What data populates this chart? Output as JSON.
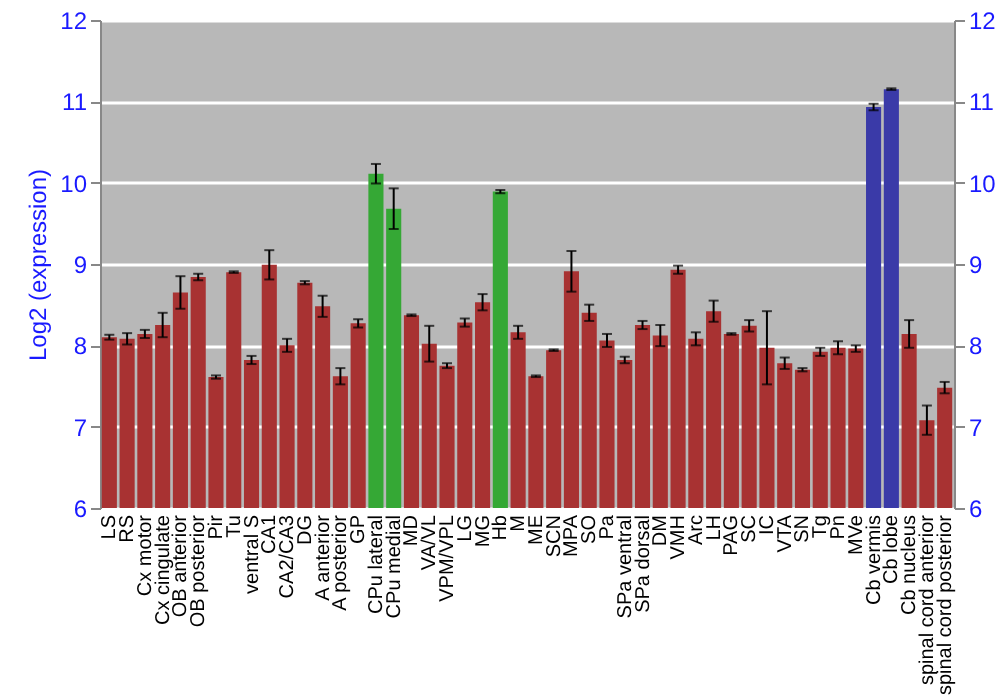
{
  "chart_data": {
    "type": "bar",
    "ylabel": "Log2 (expression)",
    "categories": [
      "LS",
      "RS",
      "Cx motor",
      "Cx cingulate",
      "OB anterior",
      "OB posterior",
      "Pir",
      "Tu",
      "ventral S",
      "CA1",
      "CA2/CA3",
      "DG",
      "A anterior",
      "A posterior",
      "GP",
      "CPu lateral",
      "CPu medial",
      "MD",
      "VA/VL",
      "VPM/VPL",
      "LG",
      "MG",
      "Hb",
      "M",
      "ME",
      "SCN",
      "MPA",
      "SO",
      "Pa",
      "SPa ventral",
      "SPa dorsal",
      "DM",
      "VMH",
      "Arc",
      "LH",
      "PAG",
      "SC",
      "IC",
      "VTA",
      "SN",
      "Tg",
      "Pn",
      "MVe",
      "Cb vermis",
      "Cb lobe",
      "Cb nucleus",
      "spinal cord anterior",
      "spinal cord posterior"
    ],
    "values": [
      8.1,
      8.08,
      8.14,
      8.25,
      8.65,
      8.84,
      7.61,
      8.9,
      7.82,
      8.99,
      8.0,
      8.77,
      8.48,
      7.62,
      8.27,
      10.11,
      9.68,
      8.37,
      8.02,
      7.75,
      8.28,
      8.53,
      9.89,
      8.16,
      7.62,
      7.94,
      8.91,
      8.4,
      8.06,
      7.82,
      8.25,
      8.12,
      8.93,
      8.08,
      8.42,
      8.14,
      8.24,
      7.97,
      7.78,
      7.7,
      7.92,
      7.97,
      7.96,
      10.93,
      11.15,
      8.14,
      7.08,
      7.48
    ],
    "errors": [
      0.03,
      0.07,
      0.05,
      0.15,
      0.2,
      0.04,
      0.02,
      0.01,
      0.05,
      0.18,
      0.08,
      0.02,
      0.13,
      0.1,
      0.05,
      0.12,
      0.25,
      0.01,
      0.22,
      0.03,
      0.05,
      0.1,
      0.02,
      0.08,
      0.01,
      0.01,
      0.25,
      0.1,
      0.08,
      0.04,
      0.05,
      0.13,
      0.05,
      0.08,
      0.13,
      0.01,
      0.07,
      0.45,
      0.07,
      0.02,
      0.05,
      0.08,
      0.04,
      0.04,
      0.01,
      0.17,
      0.18,
      0.07
    ],
    "colors": [
      "#a83232",
      "#a83232",
      "#a83232",
      "#a83232",
      "#a83232",
      "#a83232",
      "#a83232",
      "#a83232",
      "#a83232",
      "#a83232",
      "#a83232",
      "#a83232",
      "#a83232",
      "#a83232",
      "#a83232",
      "#35a835",
      "#35a835",
      "#a83232",
      "#a83232",
      "#a83232",
      "#a83232",
      "#a83232",
      "#35a835",
      "#a83232",
      "#a83232",
      "#a83232",
      "#a83232",
      "#a83232",
      "#a83232",
      "#a83232",
      "#a83232",
      "#a83232",
      "#a83232",
      "#a83232",
      "#a83232",
      "#a83232",
      "#a83232",
      "#a83232",
      "#a83232",
      "#a83232",
      "#a83232",
      "#a83232",
      "#a83232",
      "#3a3aa8",
      "#3a3aa8",
      "#a83232",
      "#a83232",
      "#a83232"
    ],
    "ylim": [
      6,
      12
    ],
    "yticks": [
      6,
      7,
      8,
      9,
      10,
      11,
      12
    ],
    "y2lim": [
      6,
      12
    ],
    "y2ticks": [
      6,
      7,
      8,
      9,
      10,
      11,
      12
    ],
    "grid": true
  }
}
